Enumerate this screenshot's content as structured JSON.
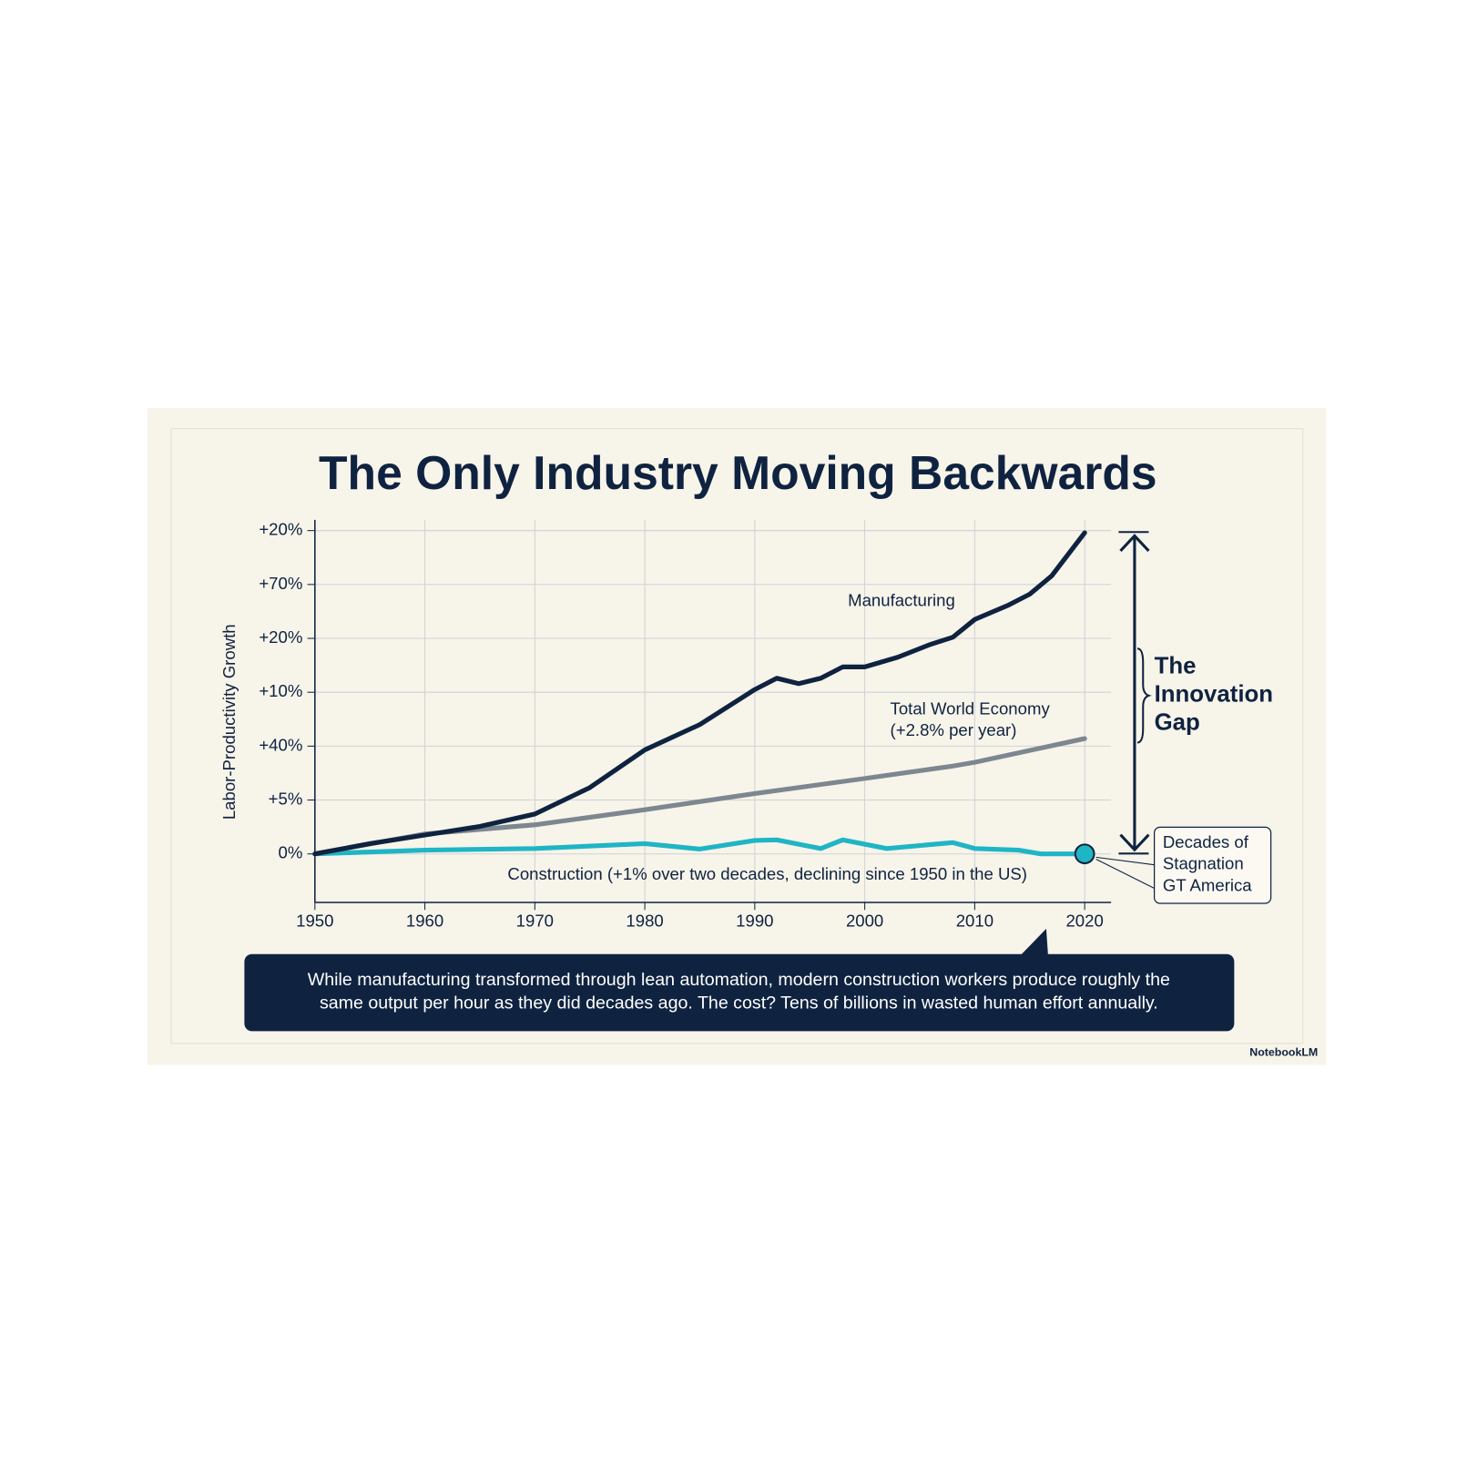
{
  "chart_data": {
    "type": "line",
    "title": "The Only Industry Moving Backwards",
    "y_label": "Labor-Productivity Growth",
    "xlim": [
      1950,
      2022.4
    ],
    "xticks": [
      1950,
      1960,
      1970,
      1980,
      1990,
      2000,
      2010,
      2020
    ],
    "ylim": [
      -0.9,
      6.2
    ],
    "yticks": [
      {
        "value": 0,
        "label": "0%"
      },
      {
        "value": 1,
        "label": "+5%"
      },
      {
        "value": 2,
        "label": "+40%"
      },
      {
        "value": 3,
        "label": "+10%"
      },
      {
        "value": 4,
        "label": "+20%"
      },
      {
        "value": 5,
        "label": "+70%"
      },
      {
        "value": 6,
        "label": "+20%"
      }
    ],
    "grid": true,
    "series": [
      {
        "name": "Manufacturing",
        "color": "#0f2340",
        "x": [
          1950,
          1955,
          1960,
          1965,
          1970,
          1975,
          1980,
          1985,
          1990,
          1992,
          1994,
          1996,
          1998,
          2000,
          2003,
          2006,
          2008,
          2010,
          2013,
          2015,
          2017,
          2020
        ],
        "values": [
          0,
          0.19,
          0.35,
          0.51,
          0.74,
          1.23,
          1.93,
          2.4,
          3.05,
          3.26,
          3.16,
          3.26,
          3.47,
          3.47,
          3.65,
          3.89,
          4.02,
          4.35,
          4.61,
          4.82,
          5.16,
          5.96
        ]
      },
      {
        "name": "Total World Economy",
        "note": "(+2.8% per year)",
        "color": "#7d8790",
        "x": [
          1950,
          1960,
          1970,
          1980,
          1990,
          2000,
          2008,
          2010,
          2020
        ],
        "values": [
          0,
          0.37,
          0.54,
          0.82,
          1.12,
          1.4,
          1.63,
          1.7,
          2.14
        ]
      },
      {
        "name": "Construction (+1% over two decades, declining since 1950 in the US)",
        "color": "#1fb5c5",
        "x": [
          1950,
          1960,
          1970,
          1980,
          1985,
          1990,
          1992,
          1996,
          1998,
          2002,
          2008,
          2010,
          2014,
          2016,
          2020
        ],
        "values": [
          0,
          0.07,
          0.1,
          0.19,
          0.09,
          0.25,
          0.26,
          0.1,
          0.26,
          0.1,
          0.21,
          0.1,
          0.07,
          0,
          0
        ]
      }
    ],
    "gap_label": [
      "The",
      "Innovation",
      "Gap"
    ],
    "callout": [
      "Decades of",
      "Stagnation",
      "GT America"
    ],
    "caption": [
      "While manufacturing transformed through lean automation, modern construction workers produce roughly the",
      "same output per hour as they did decades ago. The cost? Tens of billions in wasted human effort annually."
    ],
    "brand": "NotebookLM"
  }
}
